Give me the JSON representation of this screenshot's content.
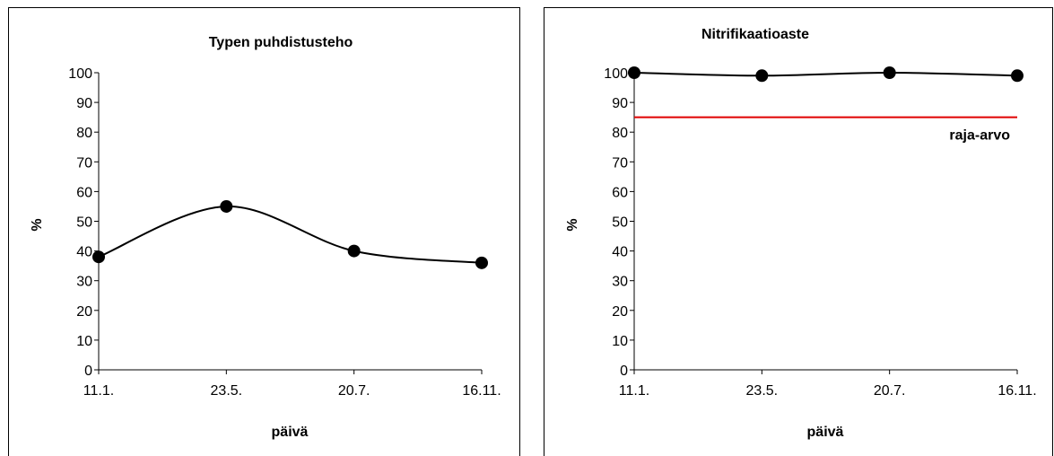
{
  "chart_data": [
    {
      "type": "line",
      "title": "Typen puhdistusteho",
      "xlabel": "päivä",
      "ylabel": "%",
      "categories": [
        "11.1.",
        "23.5.",
        "20.7.",
        "16.11."
      ],
      "ylim": [
        0,
        100
      ],
      "yticks": [
        "0",
        "10",
        "20",
        "30",
        "40",
        "50",
        "60",
        "70",
        "80",
        "90",
        "100"
      ],
      "series": [
        {
          "values": [
            38,
            55,
            40,
            36
          ],
          "color": "#000000"
        }
      ],
      "smooth": true,
      "grid": false
    },
    {
      "type": "line",
      "title": "Nitrifikaatioaste",
      "xlabel": "päivä",
      "ylabel": "%",
      "categories": [
        "11.1.",
        "23.5.",
        "20.7.",
        "16.11."
      ],
      "ylim": [
        0,
        100
      ],
      "yticks": [
        "0",
        "10",
        "20",
        "30",
        "40",
        "50",
        "60",
        "70",
        "80",
        "90",
        "100"
      ],
      "series": [
        {
          "values": [
            100,
            99,
            100,
            99
          ],
          "color": "#000000"
        }
      ],
      "reference_line": {
        "value": 85,
        "label": "raja-arvo",
        "color": "#e00000"
      },
      "smooth": true,
      "grid": false
    }
  ]
}
